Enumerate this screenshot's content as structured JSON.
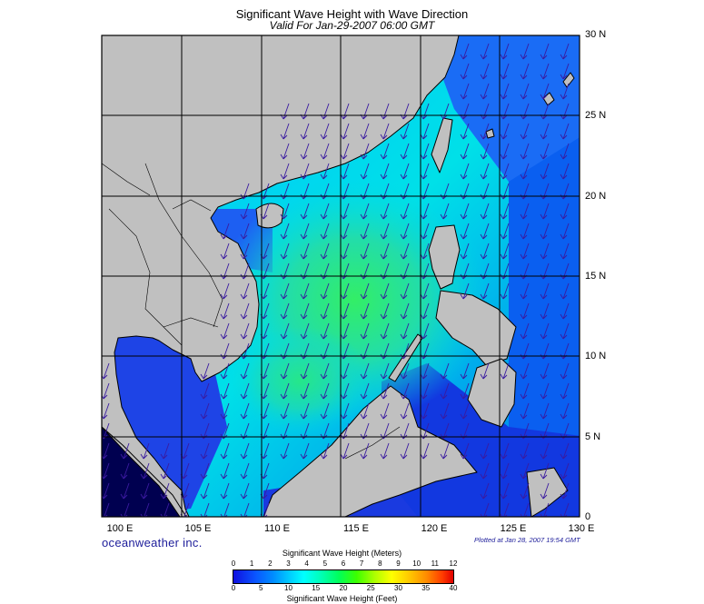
{
  "title": "Significant Wave Height with Wave Direction",
  "subtitle": "Valid For Jan-29-2007 06:00 GMT",
  "lat_labels": [
    "30 N",
    "25 N",
    "20 N",
    "15 N",
    "10 N",
    "5 N",
    "0"
  ],
  "lon_labels": [
    "100 E",
    "105 E",
    "110 E",
    "115 E",
    "120 E",
    "125 E",
    "130 E"
  ],
  "brand": "oceanweather inc.",
  "plotted": "Plotted at Jan 28, 2007 19:54 GMT",
  "colorbar": {
    "title_meters": "Significant Wave Height (Meters)",
    "title_feet": "Significant Wave Height (Feet)",
    "meters_ticks": [
      "0",
      "1",
      "2",
      "3",
      "4",
      "5",
      "6",
      "7",
      "8",
      "9",
      "10",
      "11",
      "12"
    ],
    "feet_ticks": [
      "0",
      "5",
      "10",
      "15",
      "20",
      "25",
      "30",
      "35",
      "40"
    ]
  },
  "map_data": {
    "lon_range": [
      100,
      130
    ],
    "lat_range": [
      0,
      30
    ],
    "grid_step_deg": 5,
    "wave_direction": "from NE (arrows pointing SW)",
    "max_wave_height_m": 4.5,
    "colors": {
      "land": "#c0c0c0",
      "coast": "#000000",
      "grid": "#000000",
      "arrow": "#3a1aa0"
    }
  }
}
